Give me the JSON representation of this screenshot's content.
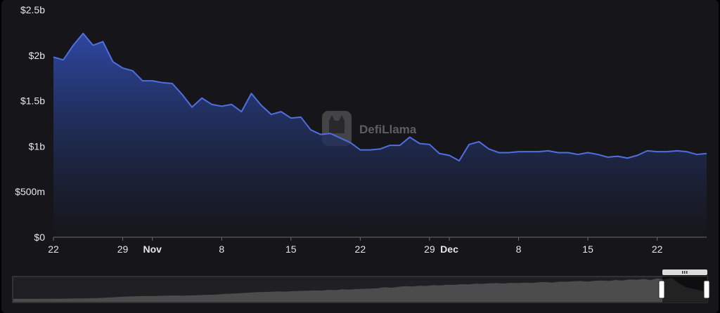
{
  "watermark": "DefiLlama",
  "colors": {
    "line": "#4f6ee0",
    "area_top": "#2e4aa8",
    "area_bottom": "#16161a",
    "background": "#16161a"
  },
  "chart_data": {
    "type": "area",
    "title": "",
    "xlabel": "",
    "ylabel": "",
    "ylim": [
      0,
      2.5
    ],
    "y_unit": "billions USD",
    "y_ticks": [
      {
        "value": 0,
        "label": "$0"
      },
      {
        "value": 0.5,
        "label": "$500m"
      },
      {
        "value": 1,
        "label": "$1b"
      },
      {
        "value": 1.5,
        "label": "$1.5b"
      },
      {
        "value": 2,
        "label": "$2b"
      },
      {
        "value": 2.5,
        "label": "$2.5b"
      }
    ],
    "x_range": [
      "Oct 22",
      "Dec 27"
    ],
    "x_ticks": [
      {
        "date": "Oct 22",
        "label": "22",
        "bold": false
      },
      {
        "date": "Oct 29",
        "label": "29",
        "bold": false
      },
      {
        "date": "Nov 1",
        "label": "Nov",
        "bold": true
      },
      {
        "date": "Nov 8",
        "label": "8",
        "bold": false
      },
      {
        "date": "Nov 15",
        "label": "15",
        "bold": false
      },
      {
        "date": "Nov 22",
        "label": "22",
        "bold": false
      },
      {
        "date": "Nov 29",
        "label": "29",
        "bold": false
      },
      {
        "date": "Dec 1",
        "label": "Dec",
        "bold": true
      },
      {
        "date": "Dec 8",
        "label": "8",
        "bold": false
      },
      {
        "date": "Dec 15",
        "label": "15",
        "bold": false
      },
      {
        "date": "Dec 22",
        "label": "22",
        "bold": false
      }
    ],
    "grid": false,
    "legend": "none",
    "series": [
      {
        "x": [
          "Oct 22",
          "Oct 23",
          "Oct 24",
          "Oct 25",
          "Oct 26",
          "Oct 27",
          "Oct 28",
          "Oct 29",
          "Oct 30",
          "Oct 31",
          "Nov 1",
          "Nov 2",
          "Nov 3",
          "Nov 4",
          "Nov 5",
          "Nov 6",
          "Nov 7",
          "Nov 8",
          "Nov 9",
          "Nov 10",
          "Nov 11",
          "Nov 12",
          "Nov 13",
          "Nov 14",
          "Nov 15",
          "Nov 16",
          "Nov 17",
          "Nov 18",
          "Nov 19",
          "Nov 20",
          "Nov 21",
          "Nov 22",
          "Nov 23",
          "Nov 24",
          "Nov 25",
          "Nov 26",
          "Nov 27",
          "Nov 28",
          "Nov 29",
          "Nov 30",
          "Dec 1",
          "Dec 2",
          "Dec 3",
          "Dec 4",
          "Dec 5",
          "Dec 6",
          "Dec 7",
          "Dec 8",
          "Dec 9",
          "Dec 10",
          "Dec 11",
          "Dec 12",
          "Dec 13",
          "Dec 14",
          "Dec 15",
          "Dec 16",
          "Dec 17",
          "Dec 18",
          "Dec 19",
          "Dec 20",
          "Dec 21",
          "Dec 22",
          "Dec 23",
          "Dec 24",
          "Dec 25",
          "Dec 26",
          "Dec 27"
        ],
        "values": [
          1.98,
          1.95,
          2.11,
          2.24,
          2.11,
          2.15,
          1.93,
          1.86,
          1.83,
          1.72,
          1.72,
          1.7,
          1.69,
          1.57,
          1.43,
          1.53,
          1.46,
          1.44,
          1.46,
          1.38,
          1.58,
          1.45,
          1.35,
          1.38,
          1.31,
          1.32,
          1.18,
          1.13,
          1.14,
          1.09,
          1.04,
          0.96,
          0.96,
          0.97,
          1.01,
          1.01,
          1.1,
          1.03,
          1.02,
          0.92,
          0.9,
          0.84,
          1.02,
          1.05,
          0.97,
          0.93,
          0.93,
          0.94,
          0.94,
          0.94,
          0.95,
          0.93,
          0.93,
          0.91,
          0.93,
          0.91,
          0.88,
          0.89,
          0.87,
          0.9,
          0.95,
          0.94,
          0.94,
          0.95,
          0.94,
          0.91,
          0.92
        ]
      }
    ]
  },
  "navigator": {
    "values": [
      0.55,
      0.55,
      0.56,
      0.56,
      0.57,
      0.58,
      0.58,
      0.6,
      0.62,
      0.63,
      0.65,
      0.68,
      0.72,
      0.78,
      0.85,
      0.93,
      1.0,
      1.05,
      1.08,
      1.12,
      1.1,
      1.15,
      1.18,
      1.2,
      1.16,
      1.22,
      1.25,
      1.3,
      1.35,
      1.4,
      1.5,
      1.55,
      1.62,
      1.7,
      1.78,
      1.85,
      1.9,
      1.95,
      2.0,
      1.96,
      2.05,
      2.1,
      2.12,
      2.2,
      2.15,
      2.3,
      2.25,
      2.4,
      2.35,
      2.45,
      2.5,
      2.55,
      2.6,
      2.8,
      2.7,
      2.9,
      3.0,
      2.95,
      3.1,
      3.05,
      3.2,
      3.15,
      3.3,
      3.25,
      3.4,
      3.35,
      3.5,
      3.45,
      3.55,
      3.6,
      3.52,
      3.65,
      3.6,
      3.7,
      3.62,
      3.75,
      3.8,
      3.7,
      3.9,
      3.85,
      3.95,
      4.0,
      3.9,
      4.05,
      4.1,
      4.0,
      4.2,
      4.1,
      4.3,
      4.25,
      4.4,
      4.2,
      4.5,
      4.3,
      4.6,
      3.6,
      2.8,
      2.5,
      2.2,
      2.0
    ]
  }
}
